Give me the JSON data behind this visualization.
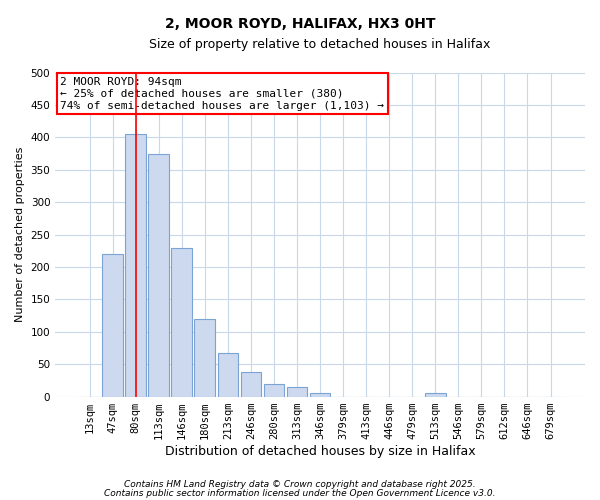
{
  "title": "2, MOOR ROYD, HALIFAX, HX3 0HT",
  "subtitle": "Size of property relative to detached houses in Halifax",
  "xlabel": "Distribution of detached houses by size in Halifax",
  "ylabel": "Number of detached properties",
  "bar_labels": [
    "13sqm",
    "47sqm",
    "80sqm",
    "113sqm",
    "146sqm",
    "180sqm",
    "213sqm",
    "246sqm",
    "280sqm",
    "313sqm",
    "346sqm",
    "379sqm",
    "413sqm",
    "446sqm",
    "479sqm",
    "513sqm",
    "546sqm",
    "579sqm",
    "612sqm",
    "646sqm",
    "679sqm"
  ],
  "bar_values": [
    0,
    220,
    405,
    375,
    230,
    120,
    68,
    38,
    20,
    15,
    5,
    0,
    0,
    0,
    0,
    6,
    0,
    0,
    0,
    0,
    0
  ],
  "bar_color": "#ccd9ee",
  "bar_edge_color": "#7ba4d4",
  "ylim": [
    0,
    500
  ],
  "yticks": [
    0,
    50,
    100,
    150,
    200,
    250,
    300,
    350,
    400,
    450,
    500
  ],
  "red_line_index": 2,
  "annotation_title": "2 MOOR ROYD: 94sqm",
  "annotation_line1": "← 25% of detached houses are smaller (380)",
  "annotation_line2": "74% of semi-detached houses are larger (1,103) →",
  "footnote1": "Contains HM Land Registry data © Crown copyright and database right 2025.",
  "footnote2": "Contains public sector information licensed under the Open Government Licence v3.0.",
  "bg_color": "#ffffff",
  "plot_bg_color": "#ffffff",
  "grid_color": "#c8d8e8",
  "title_fontsize": 10,
  "subtitle_fontsize": 9,
  "xlabel_fontsize": 9,
  "ylabel_fontsize": 8,
  "tick_fontsize": 7.5,
  "ann_fontsize": 8,
  "footnote_fontsize": 6.5
}
